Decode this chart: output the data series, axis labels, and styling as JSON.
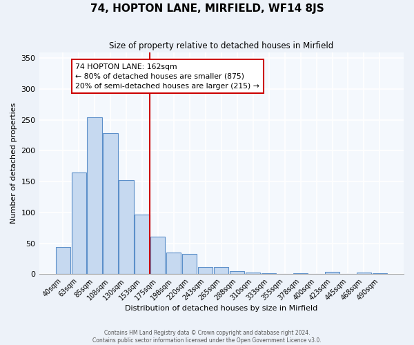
{
  "title": "74, HOPTON LANE, MIRFIELD, WF14 8JS",
  "subtitle": "Size of property relative to detached houses in Mirfield",
  "xlabel": "Distribution of detached houses by size in Mirfield",
  "ylabel": "Number of detached properties",
  "bar_labels": [
    "40sqm",
    "63sqm",
    "85sqm",
    "108sqm",
    "130sqm",
    "153sqm",
    "175sqm",
    "198sqm",
    "220sqm",
    "243sqm",
    "265sqm",
    "288sqm",
    "310sqm",
    "333sqm",
    "355sqm",
    "378sqm",
    "400sqm",
    "423sqm",
    "445sqm",
    "468sqm",
    "490sqm"
  ],
  "bar_values": [
    44,
    165,
    254,
    228,
    152,
    96,
    61,
    35,
    33,
    11,
    11,
    5,
    2,
    1,
    0,
    1,
    0,
    4,
    0,
    2,
    1
  ],
  "bar_color": "#c6d9f0",
  "bar_edge_color": "#5b8fc9",
  "vline_pos": 5.5,
  "vline_color": "#cc0000",
  "annotation_title": "74 HOPTON LANE: 162sqm",
  "annotation_line1": "← 80% of detached houses are smaller (875)",
  "annotation_line2": "20% of semi-detached houses are larger (215) →",
  "annotation_box_edge": "#cc0000",
  "ylim": [
    0,
    360
  ],
  "yticks": [
    0,
    50,
    100,
    150,
    200,
    250,
    300,
    350
  ],
  "footer1": "Contains HM Land Registry data © Crown copyright and database right 2024.",
  "footer2": "Contains public sector information licensed under the Open Government Licence v3.0.",
  "bg_color": "#edf2f9",
  "plot_bg_color": "#f4f8fd"
}
